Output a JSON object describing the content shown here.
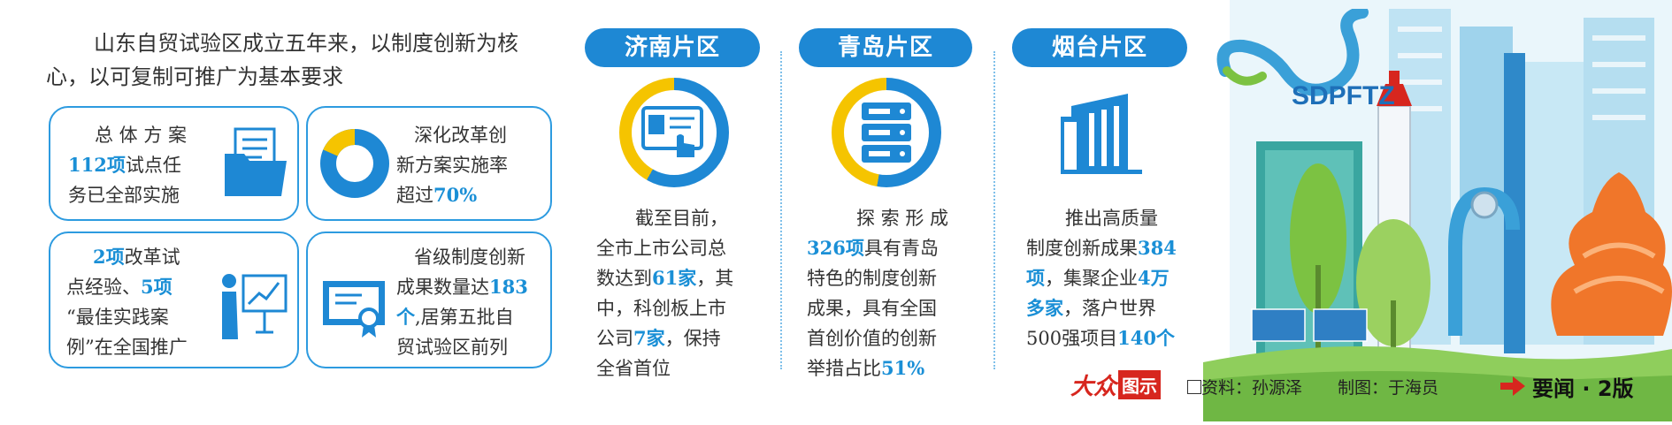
{
  "intro": {
    "line1": "山东自贸试验区成立五年来，以制度创新为核",
    "line2": "心，以可复制可推广为基本要求"
  },
  "cards": {
    "overall": {
      "l1": "总 体 方 案",
      "l2_num": "112项",
      "l2_rest": "试点任",
      "l3": "务已全部实施"
    },
    "deepen": {
      "l1": "深化改革创",
      "l2": "新方案实施率",
      "l3_pre": "超过",
      "l3_num": "70%"
    },
    "pilot": {
      "l1_num": "2项",
      "l1_rest": "改革试",
      "l2_pre": "点经验、",
      "l2_num": "5项",
      "l3": "“最佳实践案",
      "l4": "例”在全国推广"
    },
    "provincial": {
      "l1": "省级制度创新",
      "l2_pre": "成果数量达",
      "l2_num": "183",
      "l3_num": "个",
      "l3_rest": ",居第五批自",
      "l4": "贸试验区前列"
    }
  },
  "zones": {
    "jinan": {
      "title": "济南片区",
      "l1": "截至目前，",
      "l2": "全市上市公司总",
      "l3_pre": "数达到",
      "l3_num": "61家",
      "l3_post": "，其",
      "l4": "中，科创板上市",
      "l5_pre": "公司",
      "l5_num": "7家",
      "l5_post": "，保持",
      "l6": "全省首位"
    },
    "qingdao": {
      "title": "青岛片区",
      "l1": "探 索 形 成",
      "l2_num": "326项",
      "l2_rest": "具有青岛",
      "l3": "特色的制度创新",
      "l4": "成果，具有全国",
      "l5": "首创价值的创新",
      "l6_pre": "举措占比",
      "l6_num": "51%"
    },
    "yantai": {
      "title": "烟台片区",
      "l1": "推出高质量",
      "l2_pre": "制度创新成果",
      "l2_num": "384",
      "l3_num": "项",
      "l3_pre2": "，集聚企业",
      "l3_num2": "4万",
      "l4_num": "多家",
      "l4_rest": "，落户世界",
      "l5_pre": "500强项目",
      "l5_num": "140个"
    }
  },
  "logo": {
    "text": "SDPFTZ"
  },
  "footer": {
    "brand_a": "大众",
    "brand_b": "图示",
    "source": "资料：孙源泽",
    "maker": "制图：于海员",
    "section": "要闻 · 2版"
  },
  "colors": {
    "blue": "#1e88d4",
    "yellow": "#f5c400",
    "green": "#7cc242",
    "orange": "#f0762a",
    "red": "#d7261e"
  },
  "icons": [
    "folder-icon",
    "donut-chart-icon",
    "presentation-icon",
    "certificate-icon",
    "touchscreen-icon",
    "server-icon",
    "building-icon",
    "logo-swirl-icon",
    "arrow-right-icon"
  ]
}
